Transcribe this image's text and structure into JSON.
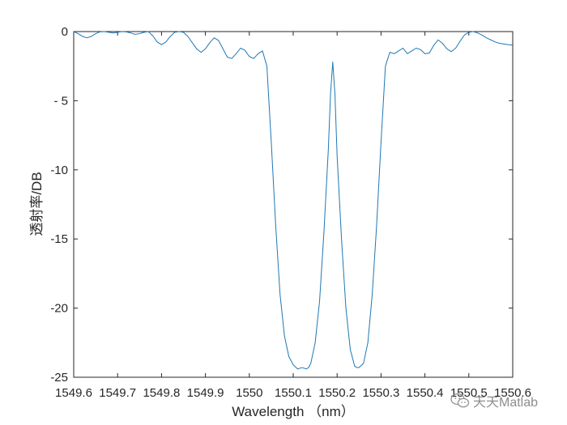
{
  "chart_data": {
    "type": "line",
    "title": "",
    "xlabel": "Wavelength （nm）",
    "ylabel": "透射率/DB",
    "xlim": [
      1549.6,
      1550.6
    ],
    "ylim": [
      -25,
      0
    ],
    "grid": false,
    "xticks": [
      1549.6,
      1549.7,
      1549.8,
      1549.9,
      1550.0,
      1550.1,
      1550.2,
      1550.3,
      1550.4,
      1550.5,
      1550.6
    ],
    "xtick_labels": [
      "1549.6",
      "1549.7",
      "1549.8",
      "1549.9",
      "1550",
      "1550.1",
      "1550.2",
      "1550.3",
      "1550.4",
      "1550.5",
      "1550.6"
    ],
    "yticks": [
      0,
      -5,
      -10,
      -15,
      -20,
      -25
    ],
    "ytick_labels": [
      "0",
      "- 5",
      "-10",
      "-15",
      "-20",
      "-25"
    ],
    "series": [
      {
        "color": "#1f77b4",
        "x": [
          1549.6,
          1549.61,
          1549.62,
          1549.63,
          1549.64,
          1549.65,
          1549.66,
          1549.67,
          1549.68,
          1549.69,
          1549.7,
          1549.71,
          1549.72,
          1549.73,
          1549.74,
          1549.75,
          1549.76,
          1549.77,
          1549.78,
          1549.79,
          1549.8,
          1549.81,
          1549.82,
          1549.83,
          1549.84,
          1549.85,
          1549.86,
          1549.87,
          1549.88,
          1549.89,
          1549.9,
          1549.91,
          1549.92,
          1549.93,
          1549.94,
          1549.95,
          1549.96,
          1549.97,
          1549.98,
          1549.99,
          1550.0,
          1550.01,
          1550.02,
          1550.03,
          1550.04,
          1550.05,
          1550.06,
          1550.07,
          1550.08,
          1550.09,
          1550.1,
          1550.11,
          1550.12,
          1550.13,
          1550.135,
          1550.14,
          1550.15,
          1550.16,
          1550.17,
          1550.18,
          1550.185,
          1550.19,
          1550.195,
          1550.2,
          1550.21,
          1550.22,
          1550.23,
          1550.24,
          1550.245,
          1550.25,
          1550.26,
          1550.27,
          1550.28,
          1550.29,
          1550.3,
          1550.31,
          1550.32,
          1550.33,
          1550.34,
          1550.35,
          1550.36,
          1550.37,
          1550.38,
          1550.39,
          1550.4,
          1550.41,
          1550.42,
          1550.43,
          1550.44,
          1550.45,
          1550.46,
          1550.47,
          1550.48,
          1550.49,
          1550.5,
          1550.51,
          1550.52,
          1550.53,
          1550.54,
          1550.55,
          1550.56,
          1550.57,
          1550.58,
          1550.59,
          1550.6
        ],
        "y": [
          0.0,
          -0.15,
          -0.35,
          -0.45,
          -0.35,
          -0.15,
          -0.02,
          0.0,
          -0.05,
          -0.1,
          -0.05,
          0.0,
          -0.02,
          -0.1,
          -0.2,
          -0.15,
          -0.05,
          0.0,
          -0.3,
          -0.75,
          -0.95,
          -0.75,
          -0.35,
          -0.05,
          0.0,
          -0.05,
          -0.35,
          -0.8,
          -1.25,
          -1.5,
          -1.25,
          -0.8,
          -0.45,
          -0.65,
          -1.25,
          -1.85,
          -1.95,
          -1.6,
          -1.2,
          -1.35,
          -1.8,
          -1.95,
          -1.6,
          -1.4,
          -2.5,
          -8.0,
          -14.0,
          -19.0,
          -22.0,
          -23.5,
          -24.1,
          -24.4,
          -24.3,
          -24.4,
          -24.3,
          -24.0,
          -22.5,
          -19.5,
          -14.5,
          -8.5,
          -4.5,
          -2.2,
          -4.5,
          -9.0,
          -15.0,
          -20.0,
          -23.0,
          -24.2,
          -24.3,
          -24.3,
          -24.0,
          -22.5,
          -19.0,
          -14.0,
          -8.0,
          -2.5,
          -1.5,
          -1.6,
          -1.4,
          -1.2,
          -1.6,
          -1.4,
          -1.2,
          -1.3,
          -1.6,
          -1.55,
          -1.0,
          -0.6,
          -0.85,
          -1.25,
          -1.45,
          -1.2,
          -0.7,
          -0.25,
          -0.05,
          0.0,
          -0.1,
          -0.25,
          -0.45,
          -0.6,
          -0.75,
          -0.85,
          -0.9,
          -0.95,
          -0.98
        ]
      }
    ]
  },
  "watermark": {
    "icon": "wechat-icon",
    "text": "天天Matlab"
  }
}
